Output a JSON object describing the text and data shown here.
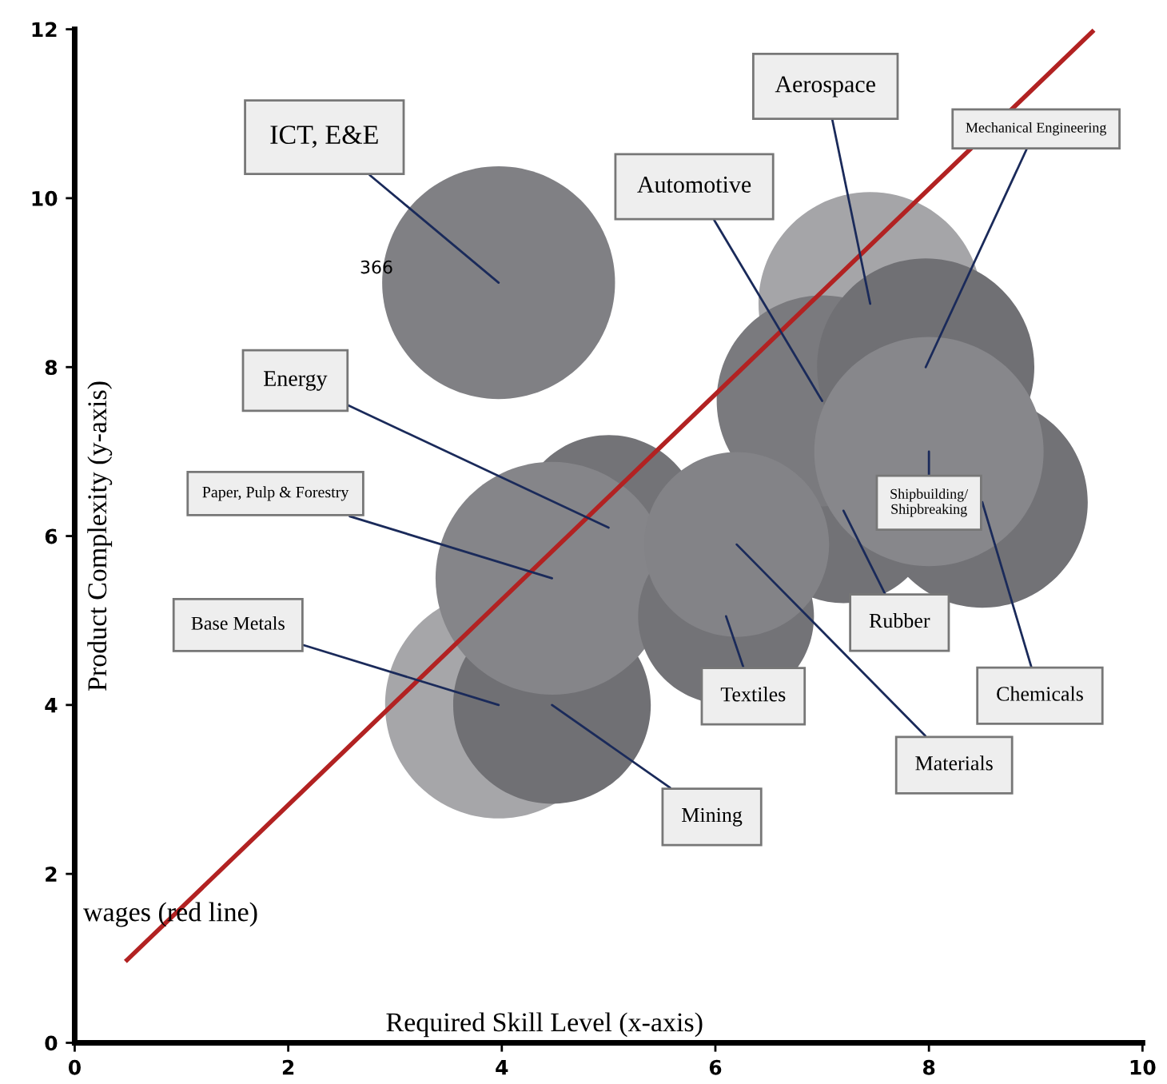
{
  "chart_data": {
    "type": "bubble",
    "xlabel": "Required Skill Level (x-axis)",
    "ylabel": "Product Complexity (y-axis)",
    "xlim": [
      0,
      10
    ],
    "ylim": [
      0,
      12
    ],
    "xticks": [
      0,
      2,
      4,
      6,
      8,
      10
    ],
    "yticks": [
      0,
      2,
      4,
      6,
      8,
      10,
      12
    ],
    "grid": false,
    "legend": false,
    "series": [
      {
        "x": [
          7.45,
          8.5,
          7.2,
          7.0,
          7.97,
          8.0,
          3.97,
          5.0,
          3.97,
          4.47,
          4.47,
          6.1,
          6.2
        ],
        "values": [
          8.75,
          6.4,
          6.3,
          7.6,
          8.0,
          7.0,
          9.0,
          6.1,
          4.0,
          4.0,
          5.5,
          5.05,
          5.9
        ],
        "sizes": [
          0.92,
          0.82,
          0.63,
          0.82,
          0.87,
          0.97,
          1,
          0.63,
          0.95,
          0.72,
          1,
          0.57,
          0.63
        ],
        "colors": [
          "#a5a5a8",
          "#727276",
          "#727276",
          "#7a7a7e",
          "#707074",
          "#87878b",
          "#808084",
          "#737377",
          "#a6a6a9",
          "#707074",
          "#858589",
          "#737377",
          "#838387"
        ]
      },
      {
        "type": "line",
        "x": [
          0.49,
          9.53
        ],
        "values": [
          0.98,
          11.97
        ],
        "color": "#b22222"
      }
    ],
    "annotations": [
      {
        "text": "Aerospace",
        "x": 7.45,
        "y": 8.75
      },
      {
        "text": "Chemicals",
        "x": 8.5,
        "y": 6.4
      },
      {
        "text": "Rubber",
        "x": 7.2,
        "y": 6.3
      },
      {
        "text": "Automotive",
        "x": 7.0,
        "y": 7.6
      },
      {
        "text": "Mechanical Engineering",
        "x": 7.97,
        "y": 8.0
      },
      {
        "text": "Shipbuilding/\nShipbreaking",
        "x": 8.0,
        "y": 7.0
      },
      {
        "text": "ICT, E&E",
        "x": 3.97,
        "y": 9.0
      },
      {
        "text": "Energy",
        "x": 5.0,
        "y": 6.1
      },
      {
        "text": "Base Metals",
        "x": 3.97,
        "y": 4.0
      },
      {
        "text": "Mining",
        "x": 4.47,
        "y": 4.0
      },
      {
        "text": "Paper, Pulp & Forestry",
        "x": 4.47,
        "y": 5.5
      },
      {
        "text": "Textiles",
        "x": 6.1,
        "y": 5.05
      },
      {
        "text": "Materials",
        "x": 6.2,
        "y": 5.9
      },
      "366",
      "wages (red line)"
    ]
  }
}
